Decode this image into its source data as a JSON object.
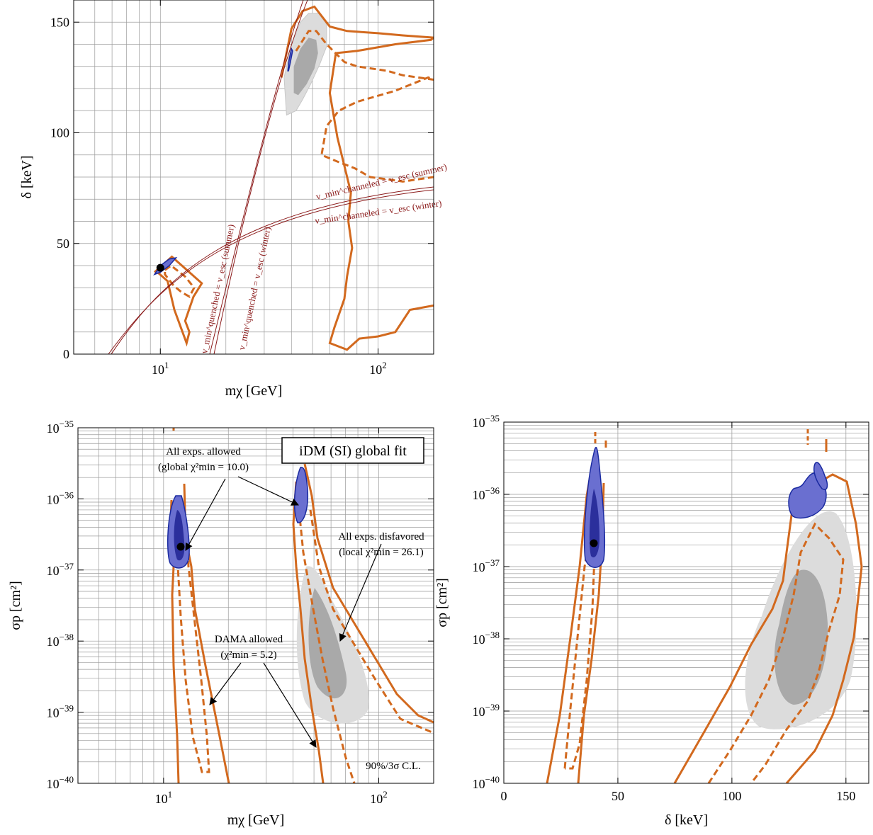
{
  "colors": {
    "dama": "#d2691e",
    "global_fill": "#6a6fd0",
    "global_edge": "#1a2aa0",
    "global_core": "#2b2f9c",
    "disfavored_outer": "#dcdcdc",
    "disfavored_inner": "#a9a9a9",
    "escape_line": "#8b1a1a",
    "grid": "#9a9a9a",
    "best_fit": "#000000"
  },
  "chart_data": [
    {
      "id": "top-left",
      "type": "contour",
      "xlabel": "mχ [GeV]",
      "ylabel": "δ [keV]",
      "xscale": "log",
      "xlim": [
        4,
        180
      ],
      "ylim": [
        0,
        160
      ],
      "xticks": [
        {
          "v": 10,
          "label": "10",
          "sup": "1"
        },
        {
          "v": 100,
          "label": "10",
          "sup": "2"
        }
      ],
      "yticks": [
        {
          "v": 0,
          "label": "0"
        },
        {
          "v": 50,
          "label": "50"
        },
        {
          "v": 100,
          "label": "100"
        },
        {
          "v": 150,
          "label": "150"
        }
      ],
      "best_fit": [
        10,
        39
      ],
      "escape_labels": {
        "channeled_summer": "v_min^channeled = v_esc (summer)",
        "channeled_winter": "v_min^channeled = v_esc (winter)",
        "quenched_summer": "v_min^quenched = v_esc (summer)",
        "quenched_winter": "v_min^quenched = v_esc (winter)"
      },
      "regions": {
        "dama_solid_low": [
          [
            9.4,
            37
          ],
          [
            11.3,
            44
          ],
          [
            15.5,
            32
          ],
          [
            14.2,
            26
          ],
          [
            13,
            15
          ],
          [
            13.6,
            10
          ],
          [
            13.2,
            5
          ],
          [
            11.6,
            20
          ],
          [
            10.8,
            33
          ],
          [
            9.7,
            37
          ]
        ],
        "dama_dashed_low": [
          [
            10.5,
            38
          ],
          [
            11.2,
            40
          ],
          [
            13,
            35
          ],
          [
            14.3,
            30
          ],
          [
            13.6,
            26
          ],
          [
            12.5,
            28
          ],
          [
            11.5,
            31
          ],
          [
            10.5,
            36
          ]
        ],
        "dama_solid_high": [
          [
            36,
            125
          ],
          [
            40,
            147
          ],
          [
            45,
            155
          ],
          [
            51,
            157
          ],
          [
            60,
            148
          ],
          [
            72,
            146
          ],
          [
            100,
            145
          ],
          [
            130,
            144
          ],
          [
            180,
            143
          ],
          [
            175,
            142
          ],
          [
            120,
            140
          ],
          [
            80,
            137
          ],
          [
            64,
            136
          ],
          [
            60,
            118
          ],
          [
            65,
            98
          ],
          [
            75,
            73
          ],
          [
            73,
            60
          ],
          [
            76,
            48
          ],
          [
            72,
            35
          ],
          [
            70,
            25
          ],
          [
            63,
            12
          ],
          [
            60,
            5
          ],
          [
            72,
            2
          ],
          [
            82,
            7
          ],
          [
            100,
            8
          ],
          [
            120,
            10
          ],
          [
            140,
            20
          ],
          [
            180,
            22
          ]
        ],
        "dama_dashed_high": [
          [
            42,
            137
          ],
          [
            48,
            146
          ],
          [
            52,
            146
          ],
          [
            58,
            140
          ],
          [
            70,
            132
          ],
          [
            80,
            130
          ],
          [
            110,
            128
          ],
          [
            130,
            126
          ],
          [
            180,
            124
          ],
          [
            170,
            125
          ],
          [
            120,
            119
          ],
          [
            80,
            114
          ],
          [
            66,
            110
          ],
          [
            58,
            103
          ],
          [
            55,
            90
          ],
          [
            65,
            87
          ],
          [
            78,
            84
          ],
          [
            92,
            80
          ],
          [
            110,
            79
          ],
          [
            130,
            78
          ],
          [
            180,
            80
          ]
        ],
        "disfavored_outer": [
          [
            38,
            108
          ],
          [
            37,
            125
          ],
          [
            40,
            140
          ],
          [
            44,
            150
          ],
          [
            48,
            154
          ],
          [
            54,
            154
          ],
          [
            58,
            149
          ],
          [
            58,
            139
          ],
          [
            54,
            131
          ],
          [
            49,
            122
          ],
          [
            45,
            115
          ],
          [
            42,
            110
          ],
          [
            38,
            108
          ]
        ],
        "disfavored_inner": [
          [
            41,
            118
          ],
          [
            41,
            130
          ],
          [
            44,
            138
          ],
          [
            48,
            143
          ],
          [
            52,
            142
          ],
          [
            53,
            136
          ],
          [
            51,
            129
          ],
          [
            47,
            122
          ],
          [
            43,
            117
          ],
          [
            41,
            118
          ]
        ],
        "global_low": [
          [
            9.4,
            36
          ],
          [
            10,
            40
          ],
          [
            11,
            43
          ],
          [
            11.8,
            43.5
          ],
          [
            11,
            40
          ],
          [
            10,
            37
          ],
          [
            9.4,
            36
          ]
        ],
        "global_high": [
          [
            38.5,
            128
          ],
          [
            39,
            133
          ],
          [
            40,
            138
          ],
          [
            40.5,
            137
          ],
          [
            39.6,
            132
          ],
          [
            38.8,
            128
          ]
        ]
      }
    },
    {
      "id": "bottom-left",
      "type": "contour",
      "xlabel": "mχ [GeV]",
      "ylabel": "σp [cm²]",
      "xscale": "log",
      "yscale": "log",
      "xlim": [
        4,
        180
      ],
      "ylim": [
        -40,
        -35
      ],
      "xticks": [
        {
          "v": 10,
          "label": "10",
          "sup": "1"
        },
        {
          "v": 100,
          "label": "10",
          "sup": "2"
        }
      ],
      "yticks": [
        {
          "v": -35,
          "label": "10",
          "sup": "−35"
        },
        {
          "v": -36,
          "label": "10",
          "sup": "−36"
        },
        {
          "v": -37,
          "label": "10",
          "sup": "−37"
        },
        {
          "v": -38,
          "label": "10",
          "sup": "−38"
        },
        {
          "v": -39,
          "label": "10",
          "sup": "−39"
        },
        {
          "v": -40,
          "label": "10",
          "sup": "−40"
        }
      ],
      "best_fit": [
        10.3,
        -36.68
      ],
      "legend_title": "iDM (SI) global fit",
      "annotations": {
        "all_allowed": [
          "All exps. allowed",
          "(global χ²min = 10.0)"
        ],
        "all_disfavored": [
          "All exps. disfavored",
          "(local χ²min = 26.1)"
        ],
        "dama_allowed": [
          "DAMA allowed",
          "(χ²min = 5.2)"
        ],
        "cl": "90%/3σ C.L."
      }
    },
    {
      "id": "bottom-right",
      "type": "contour",
      "xlabel": "δ [keV]",
      "ylabel": "σp [cm²]",
      "xscale": "linear",
      "yscale": "log",
      "xlim": [
        0,
        160
      ],
      "ylim": [
        -40,
        -35
      ],
      "xticks": [
        {
          "v": 0,
          "label": "0"
        },
        {
          "v": 50,
          "label": "50"
        },
        {
          "v": 100,
          "label": "100"
        },
        {
          "v": 150,
          "label": "150"
        }
      ],
      "yticks": [
        {
          "v": -35,
          "label": "10",
          "sup": "−35"
        },
        {
          "v": -36,
          "label": "10",
          "sup": "−36"
        },
        {
          "v": -37,
          "label": "10",
          "sup": "−37"
        },
        {
          "v": -38,
          "label": "10",
          "sup": "−38"
        },
        {
          "v": -39,
          "label": "10",
          "sup": "−39"
        },
        {
          "v": -40,
          "label": "10",
          "sup": "−40"
        }
      ],
      "best_fit": [
        39,
        -36.68
      ]
    }
  ]
}
